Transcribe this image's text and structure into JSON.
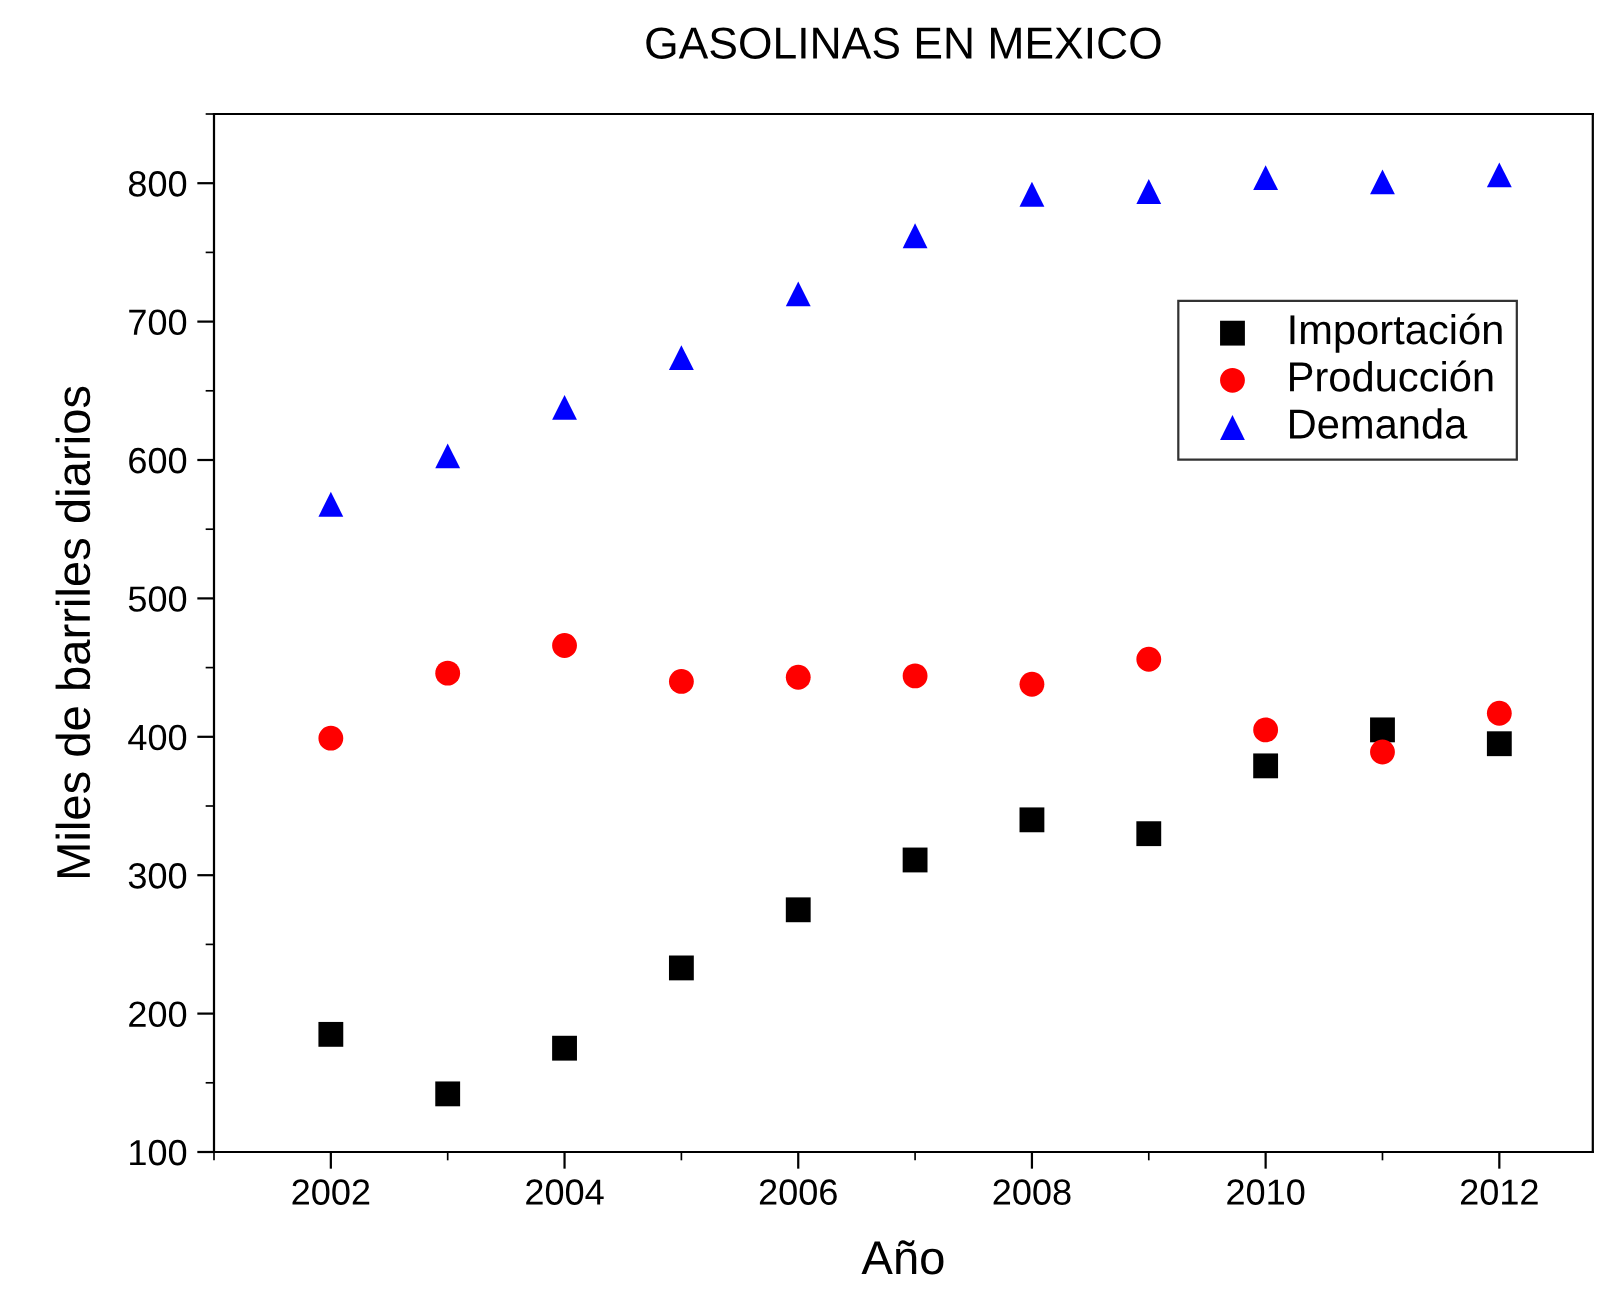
{
  "chart_data": {
    "type": "scatter",
    "title": "GASOLINAS EN MEXICO",
    "xlabel": "Año",
    "ylabel": "Miles de barriles diarios",
    "x": [
      2002,
      2003,
      2004,
      2005,
      2006,
      2007,
      2008,
      2009,
      2010,
      2011,
      2012
    ],
    "series": [
      {
        "name": "Importación",
        "color": "#000000",
        "marker": "square",
        "values": [
          185,
          142,
          175,
          233,
          275,
          311,
          340,
          330,
          379,
          405,
          395
        ]
      },
      {
        "name": "Producción",
        "color": "#ff0000",
        "marker": "circle",
        "values": [
          399,
          446,
          466,
          440,
          443,
          444,
          438,
          456,
          405,
          389,
          417
        ]
      },
      {
        "name": "Demanda",
        "color": "#0000ff",
        "marker": "triangle",
        "values": [
          568,
          603,
          638,
          674,
          720,
          762,
          792,
          794,
          804,
          801,
          806
        ]
      }
    ],
    "xlim": [
      2001,
      2012.8
    ],
    "xticks": [
      2002,
      2004,
      2006,
      2008,
      2010,
      2012
    ],
    "ylim": [
      100,
      850
    ],
    "yticks": [
      100,
      200,
      300,
      400,
      500,
      600,
      700,
      800
    ],
    "grid": false,
    "legend": "top right"
  }
}
